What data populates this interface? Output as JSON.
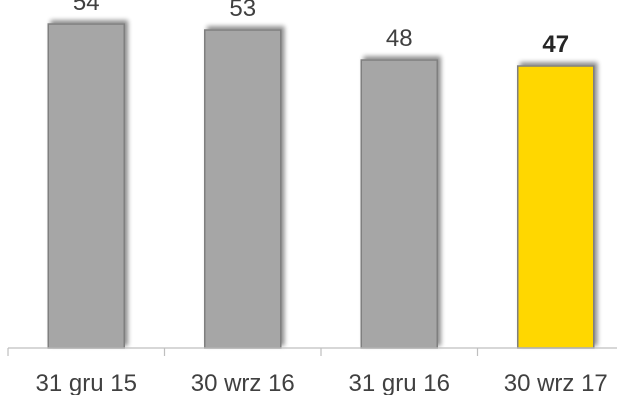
{
  "chart_data": {
    "type": "bar",
    "categories": [
      "31 gru 15",
      "30 wrz 16",
      "31 gru 16",
      "30 wrz 17"
    ],
    "values": [
      54,
      53,
      48,
      47
    ],
    "data_labels": [
      "54",
      "53",
      "48",
      "47"
    ],
    "highlight_index": 3,
    "ylim": [
      0,
      58
    ],
    "grid": false,
    "legend": "none",
    "title": "",
    "xlabel": "",
    "ylabel": "",
    "colors": {
      "bar": "#a6a6a6",
      "bar_border": "#7f7f7f",
      "highlight": "#ffd700",
      "axis": "#bfbfbf",
      "text": "#404040"
    }
  }
}
